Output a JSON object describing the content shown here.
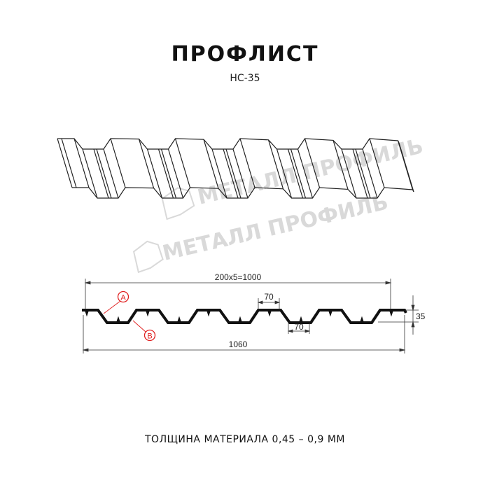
{
  "header": {
    "title": "ПРОФЛИСТ",
    "subtitle": "НС-35"
  },
  "watermark": {
    "text": "МЕТАЛЛ ПРОФИЛЬ",
    "color": "#d9d9d9"
  },
  "dimensions": {
    "pitch_total": "200x5=1000",
    "top_flat": "70",
    "bottom_flat": "70",
    "height": "35",
    "total_width": "1060",
    "marker_a": "A",
    "marker_b": "B"
  },
  "footer": {
    "thickness": "ТОЛЩИНА МАТЕРИАЛА 0,45 – 0,9 ММ"
  },
  "colors": {
    "profile": "#111111",
    "marker": "#e02020",
    "dimension": "#333333"
  }
}
